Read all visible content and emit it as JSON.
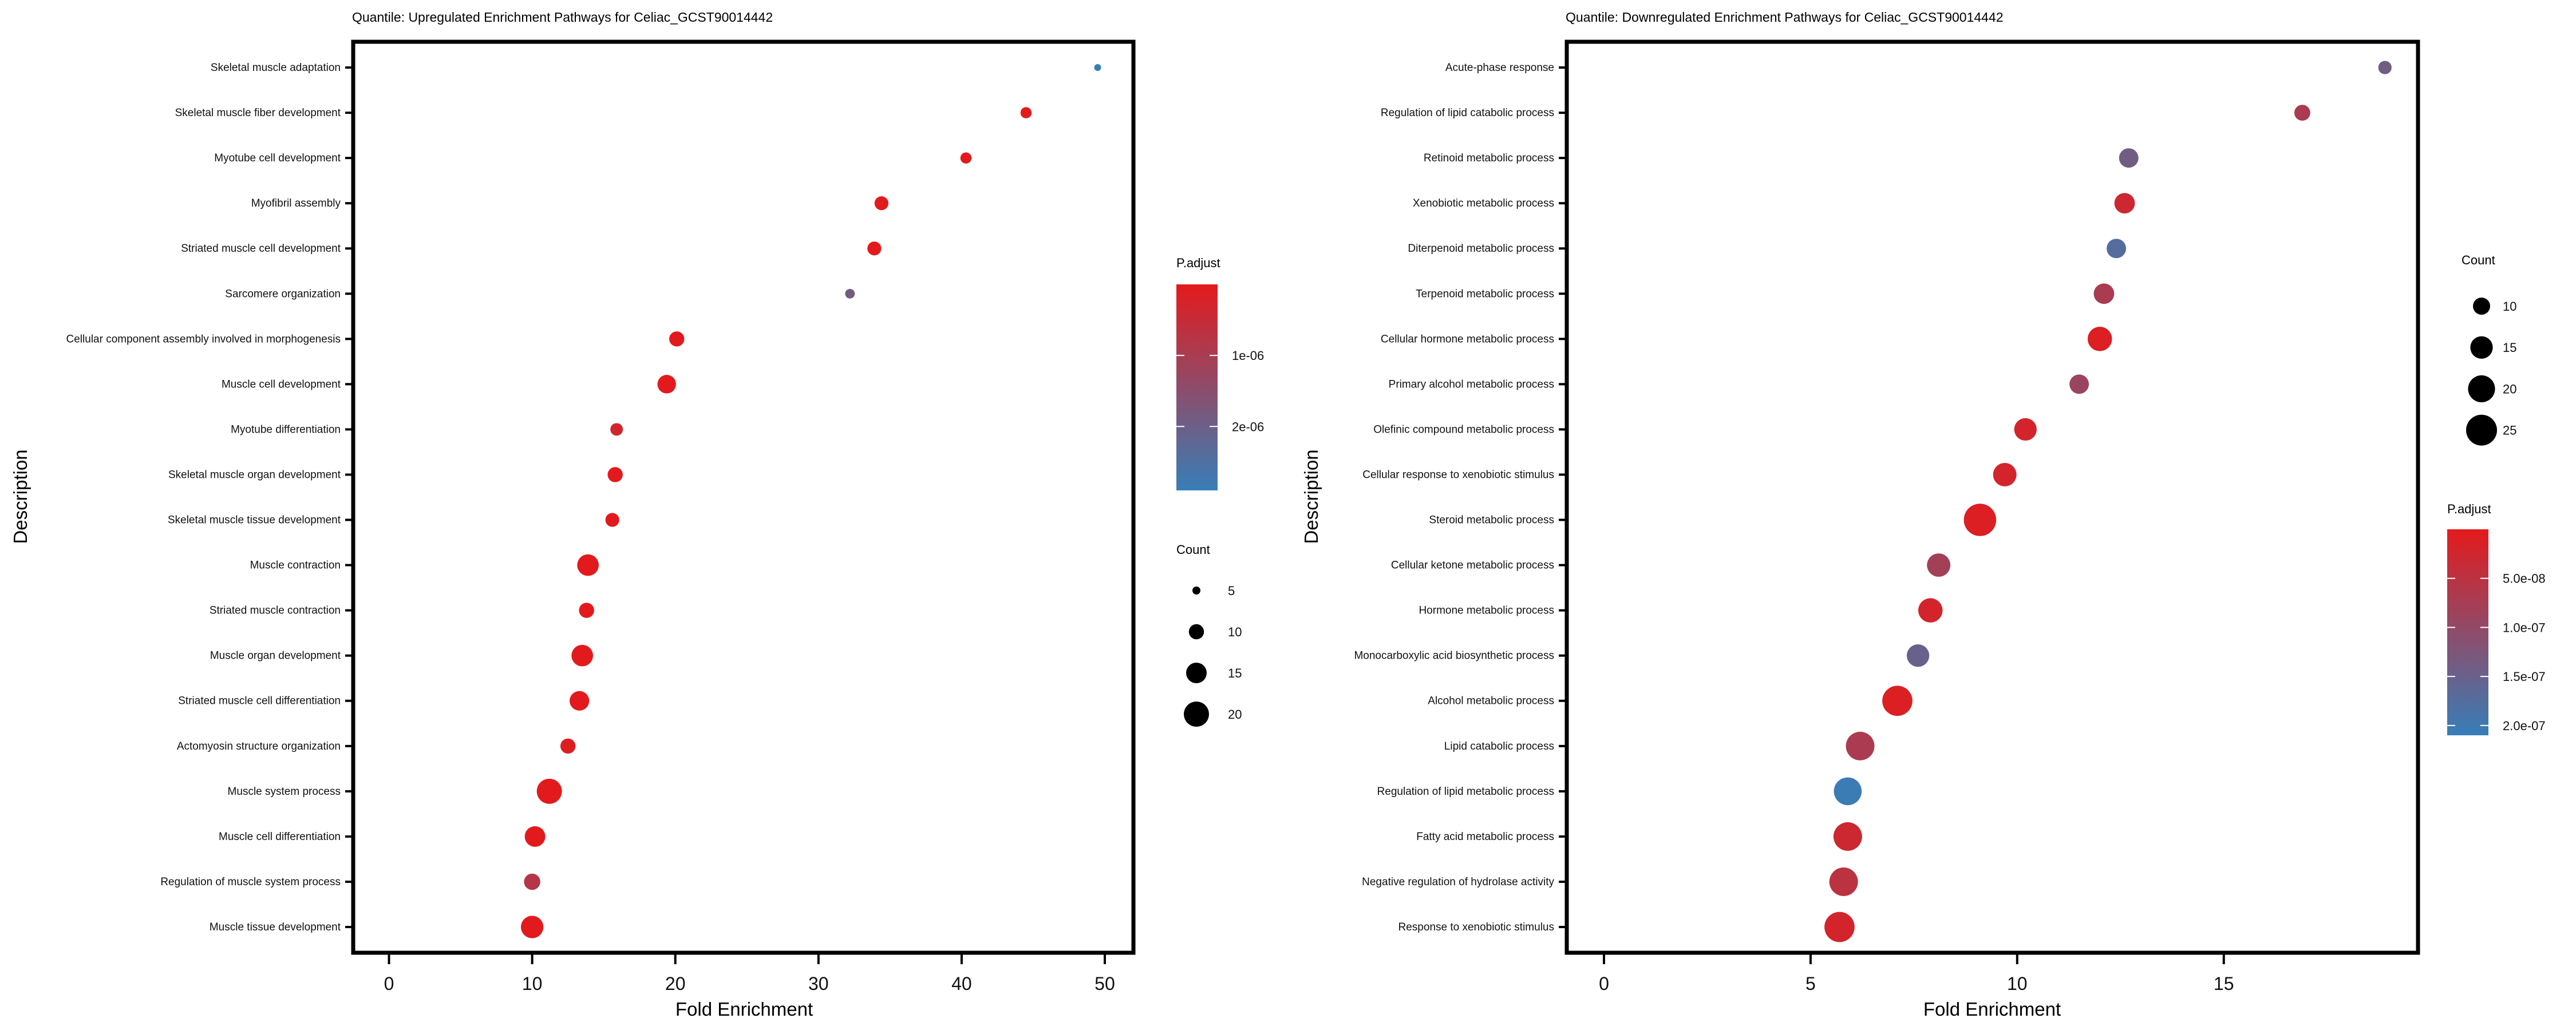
{
  "chart_data": [
    {
      "type": "scatter",
      "subtype": "dot-plot",
      "title": "Quantile: Upregulated Enrichment Pathways for Celiac_GCST90014442",
      "xlabel": "Fold Enrichment",
      "ylabel": "Description",
      "xlim": [
        -2.5,
        52
      ],
      "xticks": [
        0,
        10,
        20,
        30,
        40,
        50
      ],
      "grid": false,
      "color_legend": {
        "title": "P.adjust",
        "ticks": [
          "1e-06",
          "2e-06"
        ],
        "tick_values": [
          1e-06,
          2e-06
        ],
        "range": [
          0,
          2.9e-06
        ],
        "low_color": "#e41a1c",
        "high_color": "#377eb8"
      },
      "size_legend": {
        "title": "Count",
        "values": [
          5,
          10,
          15,
          20
        ]
      },
      "legend_order": [
        "color",
        "size"
      ],
      "points": [
        {
          "label": "Skeletal muscle adaptation",
          "x": 49.5,
          "count": 4,
          "padj": 2.9e-06
        },
        {
          "label": "Skeletal muscle fiber development",
          "x": 44.5,
          "count": 7,
          "padj": 1e-08
        },
        {
          "label": "Myotube cell development",
          "x": 40.3,
          "count": 7,
          "padj": 1e-08
        },
        {
          "label": "Myofibril assembly",
          "x": 34.4,
          "count": 9,
          "padj": 1e-08
        },
        {
          "label": "Striated muscle cell development",
          "x": 33.9,
          "count": 9,
          "padj": 1e-08
        },
        {
          "label": "Sarcomere organization",
          "x": 32.2,
          "count": 6,
          "padj": 1.9e-06
        },
        {
          "label": "Cellular component assembly involved in morphogenesis",
          "x": 20.1,
          "count": 10,
          "padj": 1e-08
        },
        {
          "label": "Muscle cell development",
          "x": 19.4,
          "count": 13,
          "padj": 1e-08
        },
        {
          "label": "Myotube differentiation",
          "x": 15.9,
          "count": 8,
          "padj": 3e-07
        },
        {
          "label": "Skeletal muscle organ development",
          "x": 15.8,
          "count": 10,
          "padj": 1e-08
        },
        {
          "label": "Skeletal muscle tissue development",
          "x": 15.6,
          "count": 9,
          "padj": 1e-08
        },
        {
          "label": "Muscle contraction",
          "x": 13.9,
          "count": 16,
          "padj": 1e-08
        },
        {
          "label": "Striated muscle contraction",
          "x": 13.8,
          "count": 10,
          "padj": 1e-08
        },
        {
          "label": "Muscle organ development",
          "x": 13.5,
          "count": 16,
          "padj": 1e-08
        },
        {
          "label": "Striated muscle cell differentiation",
          "x": 13.3,
          "count": 14,
          "padj": 1e-08
        },
        {
          "label": "Actomyosin structure organization",
          "x": 12.5,
          "count": 10,
          "padj": 1e-07
        },
        {
          "label": "Muscle system process",
          "x": 11.2,
          "count": 20,
          "padj": 1e-08
        },
        {
          "label": "Muscle cell differentiation",
          "x": 10.2,
          "count": 15,
          "padj": 1e-08
        },
        {
          "label": "Regulation of muscle system process",
          "x": 10.0,
          "count": 11,
          "padj": 8e-07
        },
        {
          "label": "Muscle tissue development",
          "x": 10.0,
          "count": 17,
          "padj": 1e-08
        }
      ]
    },
    {
      "type": "scatter",
      "subtype": "dot-plot",
      "title": "Quantile: Downregulated Enrichment Pathways for Celiac_GCST90014442",
      "xlabel": "Fold Enrichment",
      "ylabel": "Description",
      "xlim": [
        -0.9,
        19.7
      ],
      "xticks": [
        0,
        5,
        10,
        15
      ],
      "grid": false,
      "size_legend": {
        "title": "Count",
        "values": [
          10,
          15,
          20,
          25
        ]
      },
      "color_legend": {
        "title": "P.adjust",
        "ticks": [
          "5.0e-08",
          "1.0e-07",
          "1.5e-07",
          "2.0e-07"
        ],
        "tick_values": [
          5e-08,
          1e-07,
          1.5e-07,
          2e-07
        ],
        "range": [
          0,
          2.1e-07
        ],
        "low_color": "#e41a1c",
        "high_color": "#377eb8"
      },
      "legend_order": [
        "size",
        "color"
      ],
      "points": [
        {
          "label": "Acute-phase response",
          "x": 18.9,
          "count": 7,
          "padj": 1.4e-07
        },
        {
          "label": "Regulation of lipid catabolic process",
          "x": 16.9,
          "count": 9,
          "padj": 7e-08
        },
        {
          "label": "Retinoid metabolic process",
          "x": 12.7,
          "count": 12,
          "padj": 1.4e-07
        },
        {
          "label": "Xenobiotic metabolic process",
          "x": 12.6,
          "count": 13,
          "padj": 3e-08
        },
        {
          "label": "Diterpenoid metabolic process",
          "x": 12.4,
          "count": 12,
          "padj": 1.75e-07
        },
        {
          "label": "Terpenoid metabolic process",
          "x": 12.1,
          "count": 13,
          "padj": 7e-08
        },
        {
          "label": "Cellular hormone metabolic process",
          "x": 12.0,
          "count": 17,
          "padj": 1e-08
        },
        {
          "label": "Primary alcohol metabolic process",
          "x": 11.5,
          "count": 12,
          "padj": 9e-08
        },
        {
          "label": "Olefinic compound metabolic process",
          "x": 10.2,
          "count": 15,
          "padj": 2e-08
        },
        {
          "label": "Cellular response to xenobiotic stimulus",
          "x": 9.7,
          "count": 16,
          "padj": 2e-08
        },
        {
          "label": "Steroid metabolic process",
          "x": 9.1,
          "count": 27,
          "padj": 1e-08
        },
        {
          "label": "Cellular ketone metabolic process",
          "x": 8.1,
          "count": 16,
          "padj": 8e-08
        },
        {
          "label": "Hormone metabolic process",
          "x": 7.9,
          "count": 17,
          "padj": 2e-08
        },
        {
          "label": "Monocarboxylic acid biosynthetic process",
          "x": 7.6,
          "count": 15,
          "padj": 1.5e-07
        },
        {
          "label": "Alcohol metabolic process",
          "x": 7.1,
          "count": 24,
          "padj": 1e-08
        },
        {
          "label": "Lipid catabolic process",
          "x": 6.2,
          "count": 22,
          "padj": 7e-08
        },
        {
          "label": "Regulation of lipid metabolic process",
          "x": 5.9,
          "count": 21,
          "padj": 2.05e-07
        },
        {
          "label": "Fatty acid metabolic process",
          "x": 5.9,
          "count": 22,
          "padj": 3e-08
        },
        {
          "label": "Negative regulation of hydrolase activity",
          "x": 5.8,
          "count": 22,
          "padj": 5e-08
        },
        {
          "label": "Response to xenobiotic stimulus",
          "x": 5.7,
          "count": 24,
          "padj": 2e-08
        }
      ]
    }
  ]
}
